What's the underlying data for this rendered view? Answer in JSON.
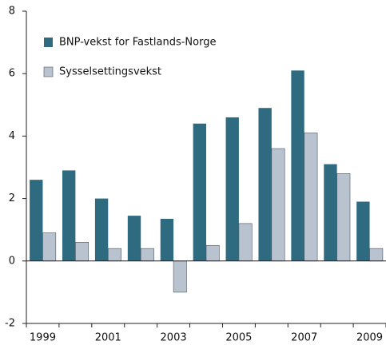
{
  "chart_data": {
    "type": "bar",
    "categories": [
      "1999",
      null,
      "2001",
      null,
      "2003",
      null,
      "2005",
      null,
      "2007",
      null,
      "2009"
    ],
    "series": [
      {
        "name": "BNP-vekst for Fastlands-Norge",
        "color": "#2e6a80",
        "values": [
          2.6,
          2.9,
          2.0,
          1.45,
          1.35,
          4.4,
          4.6,
          4.9,
          6.1,
          3.1,
          1.9
        ]
      },
      {
        "name": "Sysselsettingsvekst",
        "color": "#b9c3cf",
        "values": [
          0.9,
          0.6,
          0.4,
          0.4,
          -1.0,
          0.5,
          1.2,
          3.6,
          4.1,
          2.8,
          0.4
        ]
      }
    ],
    "ylim": [
      -2,
      8
    ],
    "yticks": [
      -2,
      0,
      2,
      4,
      6,
      8
    ],
    "legend": "upper left"
  }
}
